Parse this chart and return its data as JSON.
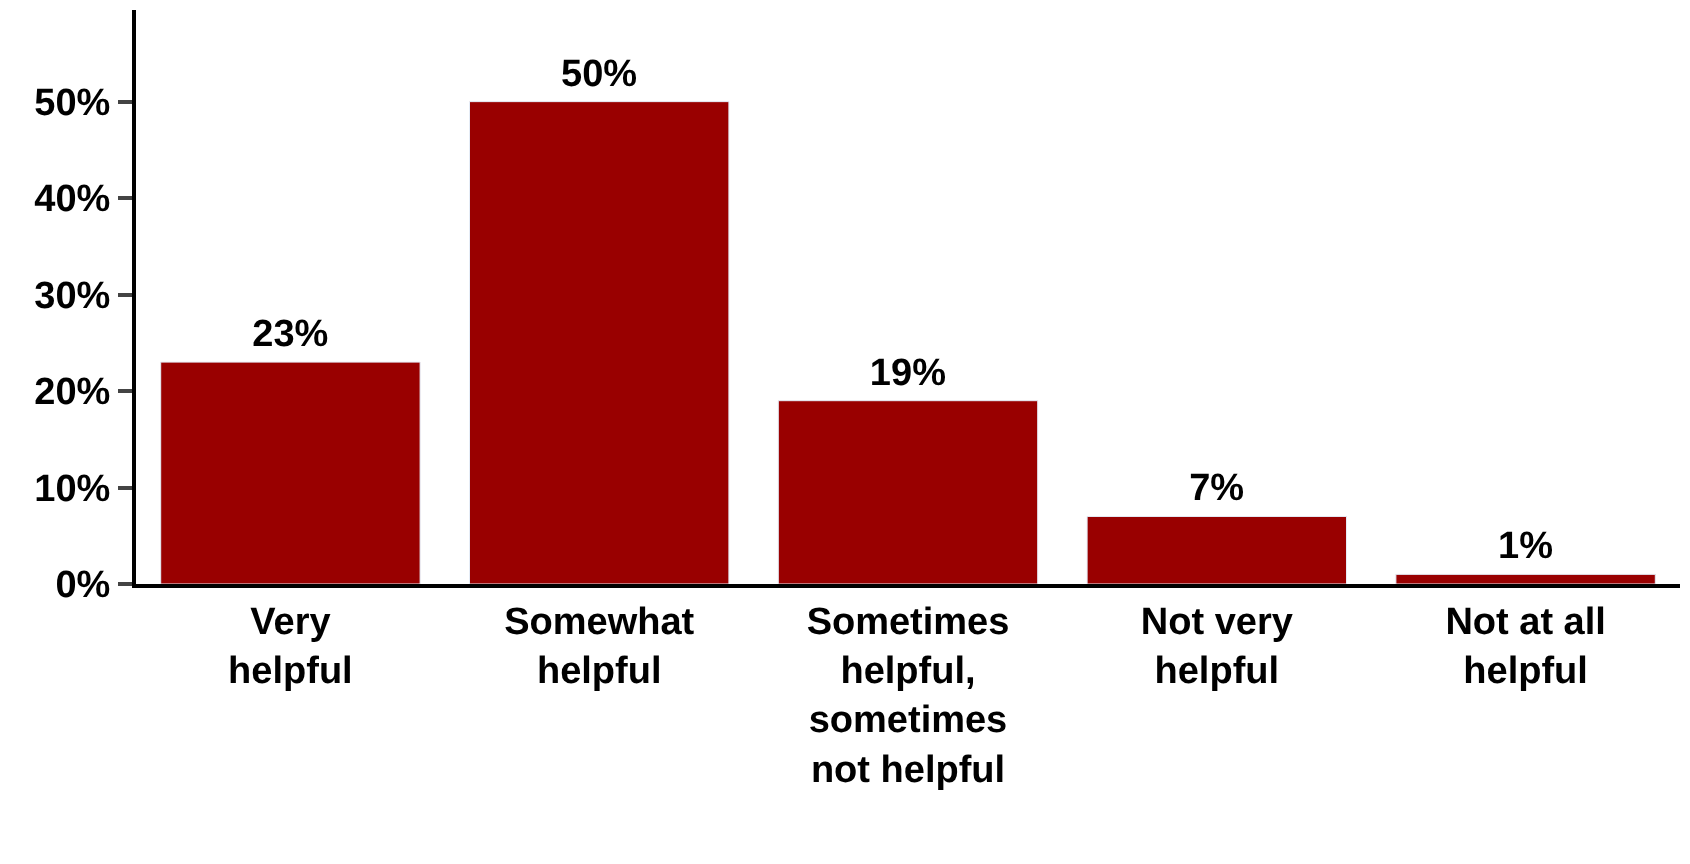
{
  "chart_data": {
    "type": "bar",
    "categories": [
      "Very helpful",
      "Somewhat helpful",
      "Sometimes helpful, sometimes not helpful",
      "Not very helpful",
      "Not at all helpful"
    ],
    "values": [
      23,
      50,
      19,
      7,
      1
    ],
    "value_labels": [
      "23%",
      "50%",
      "19%",
      "7%",
      "1%"
    ],
    "color": "#990000",
    "ylim": [
      0,
      59.5
    ],
    "yticks": [
      {
        "value": 0,
        "label": "0%"
      },
      {
        "value": 10,
        "label": "10%"
      },
      {
        "value": 20,
        "label": "20%"
      },
      {
        "value": 30,
        "label": "30%"
      },
      {
        "value": 40,
        "label": "40%"
      },
      {
        "value": 50,
        "label": "50%"
      }
    ]
  }
}
